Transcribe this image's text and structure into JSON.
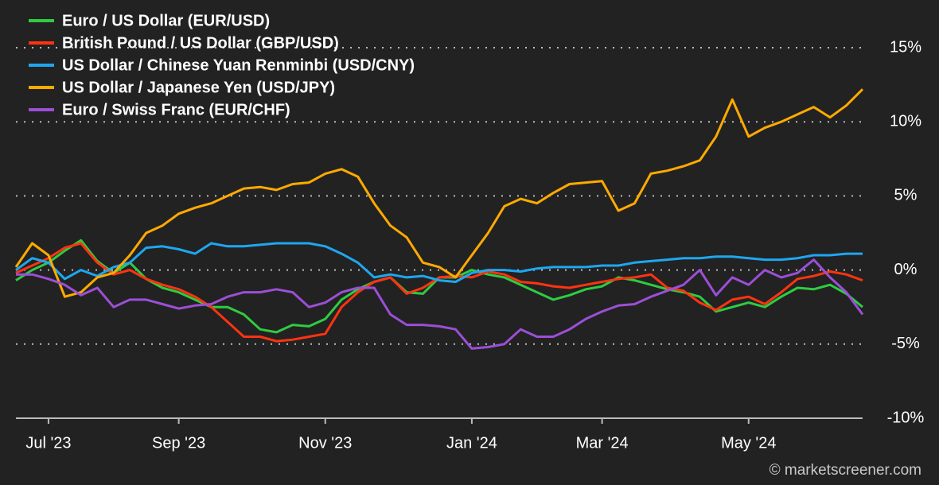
{
  "chart_data": {
    "type": "line",
    "categories": [
      null,
      null,
      "Jul '23",
      null,
      null,
      null,
      null,
      null,
      null,
      null,
      "Sep '23",
      null,
      null,
      null,
      null,
      null,
      null,
      null,
      null,
      "Nov '23",
      null,
      null,
      null,
      null,
      null,
      null,
      null,
      null,
      "Jan '24",
      null,
      null,
      null,
      null,
      null,
      null,
      null,
      "Mar '24",
      null,
      null,
      null,
      null,
      null,
      null,
      null,
      null,
      "May '24",
      null,
      null,
      null,
      null,
      null,
      null,
      null
    ],
    "series": [
      {
        "name": "Euro / US Dollar (EUR/USD)",
        "color": "#2ecc40",
        "values": [
          -0.7,
          0,
          0.5,
          1.3,
          2,
          0.6,
          -0.2,
          0.5,
          -0.6,
          -1.2,
          -1.5,
          -2,
          -2.5,
          -2.5,
          -3,
          -4,
          -4.2,
          -3.7,
          -3.8,
          -3.3,
          -2,
          -1.3,
          -0.8,
          -0.5,
          -1.5,
          -1.6,
          -0.5,
          -0.5,
          0,
          -0.3,
          -0.5,
          -1,
          -1.5,
          -2,
          -1.7,
          -1.3,
          -1.1,
          -0.5,
          -0.7,
          -1,
          -1.3,
          -1.5,
          -1.8,
          -2.8,
          -2.5,
          -2.2,
          -2.5,
          -1.8,
          -1.2,
          -1.3,
          -1,
          -1.6,
          -2.5
        ]
      },
      {
        "name": "British Pound / US Dollar (GBP/USD)",
        "color": "#ff3311",
        "values": [
          -0.2,
          0.3,
          0.8,
          1.5,
          1.8,
          0.5,
          -0.3,
          0,
          -0.6,
          -1,
          -1.3,
          -1.8,
          -2.5,
          -3.5,
          -4.5,
          -4.5,
          -4.8,
          -4.7,
          -4.5,
          -4.3,
          -2.5,
          -1.5,
          -0.8,
          -0.5,
          -1.6,
          -1.2,
          -0.5,
          -0.4,
          -0.5,
          -0.1,
          -0.3,
          -0.8,
          -0.9,
          -1.1,
          -1.2,
          -1,
          -0.8,
          -0.6,
          -0.5,
          -0.3,
          -1.2,
          -1.4,
          -2.2,
          -2.7,
          -2,
          -1.8,
          -2.3,
          -1.5,
          -0.6,
          -0.4,
          -0.1,
          -0.3,
          -0.7
        ]
      },
      {
        "name": "US Dollar / Chinese Yuan Renminbi (USD/CNY)",
        "color": "#1ea7f0",
        "values": [
          0,
          0.8,
          0.5,
          -0.6,
          0,
          -0.4,
          0.2,
          0.5,
          1.5,
          1.6,
          1.4,
          1.1,
          1.8,
          1.6,
          1.6,
          1.7,
          1.8,
          1.8,
          1.8,
          1.6,
          1.1,
          0.5,
          -0.5,
          -0.3,
          -0.5,
          -0.4,
          -0.7,
          -0.8,
          -0.2,
          0,
          0,
          -0.1,
          0.1,
          0.2,
          0.2,
          0.2,
          0.3,
          0.3,
          0.5,
          0.6,
          0.7,
          0.8,
          0.8,
          0.9,
          0.9,
          0.8,
          0.7,
          0.7,
          0.8,
          1,
          1,
          1.1,
          1.1
        ]
      },
      {
        "name": "US Dollar / Japanese Yen (USD/JPY)",
        "color": "#ffaa00",
        "values": [
          0.2,
          1.8,
          1,
          -1.8,
          -1.5,
          -0.5,
          -0.2,
          1,
          2.5,
          3,
          3.8,
          4.2,
          4.5,
          5,
          5.5,
          5.6,
          5.4,
          5.8,
          5.9,
          6.5,
          6.8,
          6.3,
          4.5,
          3,
          2.2,
          0.5,
          0.2,
          -0.5,
          1,
          2.5,
          4.3,
          4.8,
          4.5,
          5.2,
          5.8,
          5.9,
          6,
          4,
          4.5,
          6.5,
          6.7,
          7,
          7.4,
          9,
          11.5,
          9,
          9.6,
          10,
          10.5,
          11,
          10.3,
          11.1,
          12.2
        ]
      },
      {
        "name": "Euro / Swiss Franc (EUR/CHF)",
        "color": "#9b4fd6",
        "values": [
          -0.3,
          -0.3,
          -0.6,
          -1,
          -1.7,
          -1.2,
          -2.5,
          -2,
          -2,
          -2.3,
          -2.6,
          -2.4,
          -2.3,
          -1.8,
          -1.5,
          -1.5,
          -1.3,
          -1.5,
          -2.5,
          -2.2,
          -1.5,
          -1.2,
          -1.2,
          -3,
          -3.7,
          -3.7,
          -3.8,
          -4,
          -5.3,
          -5.2,
          -5,
          -4,
          -4.5,
          -4.5,
          -4,
          -3.3,
          -2.8,
          -2.4,
          -2.3,
          -1.8,
          -1.4,
          -1,
          0,
          -1.7,
          -0.5,
          -1,
          0,
          -0.5,
          -0.2,
          0.7,
          -0.5,
          -1.5,
          -3
        ]
      }
    ],
    "ylim": [
      -10,
      15
    ],
    "yticks": [
      {
        "value": -10,
        "label": "-10%"
      },
      {
        "value": -5,
        "label": "-5%"
      },
      {
        "value": 0,
        "label": "0%"
      },
      {
        "value": 5,
        "label": "5%"
      },
      {
        "value": 10,
        "label": "10%"
      },
      {
        "value": 15,
        "label": "15%"
      }
    ],
    "grid": true,
    "legend": "top-left",
    "credit": "© marketscreener.com"
  }
}
